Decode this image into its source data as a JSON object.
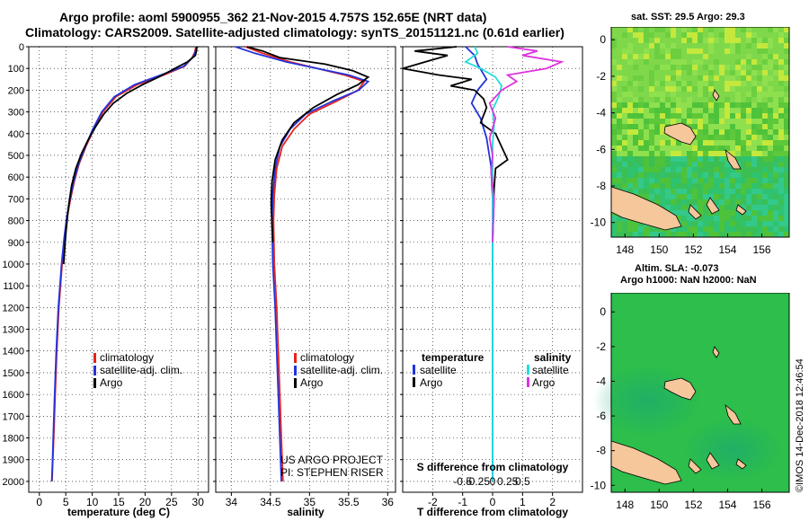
{
  "header": {
    "title_line1": "Argo profile: aoml 5900955_362 21-Nov-2015 4.757S 152.65E (NRT data)",
    "title_line2": "Climatology: CARS2009. Satellite-adjusted climatology: synTS_20151121.nc (0.61d earlier)"
  },
  "colors": {
    "climatology": "#e8221c",
    "satellite": "#2233dd",
    "argo": "#000000",
    "salinity_satellite": "#22dddd",
    "salinity_argo": "#dd33dd",
    "land": "#f5c79b"
  },
  "chart_data": [
    {
      "id": "temperature",
      "type": "line",
      "xlabel": "temperature (deg C)",
      "xlim": [
        -2,
        32
      ],
      "xticks": [
        0,
        5,
        10,
        15,
        20,
        25,
        30
      ],
      "xticklabels": [
        "0",
        "5",
        "10",
        "15",
        "20",
        "25",
        "30"
      ],
      "ylim": [
        0,
        2050
      ],
      "yticks": [
        0,
        100,
        200,
        300,
        400,
        500,
        600,
        700,
        800,
        900,
        1000,
        1100,
        1200,
        1300,
        1400,
        1500,
        1600,
        1700,
        1800,
        1900,
        2000
      ],
      "yticklabels": [
        "0",
        "100",
        "200",
        "300",
        "400",
        "500",
        "600",
        "700",
        "800",
        "900",
        "1000",
        "1100",
        "1200",
        "1300",
        "1400",
        "1500",
        "1600",
        "1700",
        "1800",
        "1900",
        "2000"
      ],
      "legend": [
        "climatology",
        "satellite-adj. clim.",
        "Argo"
      ],
      "series": [
        {
          "name": "climatology",
          "color": "#e8221c",
          "x": [
            29.6,
            29.4,
            28.9,
            27.5,
            23.5,
            18.5,
            14.5,
            12.0,
            10.3,
            8.8,
            7.5,
            6.6,
            5.9,
            5.3,
            4.8,
            4.3,
            3.7,
            3.3,
            3.0,
            2.8,
            2.55,
            2.4
          ],
          "y": [
            0,
            25,
            50,
            90,
            130,
            175,
            230,
            300,
            380,
            460,
            540,
            620,
            700,
            780,
            880,
            1000,
            1200,
            1400,
            1600,
            1750,
            1900,
            2000
          ]
        },
        {
          "name": "satellite-adj. clim.",
          "color": "#2233dd",
          "x": [
            29.7,
            29.5,
            29.0,
            27.3,
            23.0,
            18.0,
            14.2,
            11.8,
            10.1,
            8.7,
            7.4,
            6.5,
            5.8,
            5.2,
            4.7,
            4.2,
            3.6,
            3.2,
            2.9,
            2.7,
            2.5,
            2.35
          ],
          "y": [
            0,
            25,
            50,
            90,
            130,
            175,
            230,
            300,
            380,
            460,
            540,
            620,
            700,
            780,
            880,
            1000,
            1200,
            1400,
            1600,
            1750,
            1900,
            2000
          ]
        },
        {
          "name": "Argo",
          "color": "#000000",
          "x": [
            29.8,
            29.7,
            29.5,
            28.0,
            26.0,
            24.5,
            22.5,
            19.5,
            16.5,
            14.0,
            12.2,
            10.6,
            9.2,
            8.0,
            6.9,
            6.1,
            5.5,
            5.0,
            4.6
          ],
          "y": [
            0,
            20,
            40,
            70,
            95,
            115,
            140,
            175,
            215,
            260,
            310,
            370,
            430,
            490,
            560,
            640,
            740,
            860,
            1000
          ]
        }
      ]
    },
    {
      "id": "salinity",
      "type": "line",
      "xlabel": "salinity",
      "xlim": [
        33.8,
        36.1
      ],
      "xticks": [
        34,
        34.5,
        35,
        35.5,
        36
      ],
      "xticklabels": [
        "34",
        "34.5",
        "35",
        "35.5",
        "36"
      ],
      "ylim": [
        0,
        2050
      ],
      "legend": [
        "climatology",
        "satellite-adj. clim.",
        "Argo"
      ],
      "credit_line1": "US ARGO PROJECT",
      "credit_line2": "PI: STEPHEN RISER",
      "series": [
        {
          "name": "climatology",
          "color": "#e8221c",
          "x": [
            34.18,
            34.4,
            34.75,
            35.1,
            35.45,
            35.7,
            35.62,
            35.35,
            35.0,
            34.8,
            34.65,
            34.58,
            34.55,
            34.54,
            34.55,
            34.58,
            34.6,
            34.62,
            34.64,
            34.66
          ],
          "y": [
            0,
            30,
            70,
            100,
            130,
            160,
            200,
            250,
            310,
            380,
            460,
            560,
            680,
            800,
            1000,
            1200,
            1400,
            1600,
            1800,
            2000
          ]
        },
        {
          "name": "satellite-adj. clim.",
          "color": "#2233dd",
          "x": [
            34.05,
            34.3,
            34.7,
            35.1,
            35.5,
            35.75,
            35.63,
            35.3,
            34.95,
            34.75,
            34.62,
            34.56,
            34.53,
            34.52,
            34.53,
            34.56,
            34.58,
            34.6,
            34.62,
            34.64
          ],
          "y": [
            0,
            30,
            70,
            100,
            130,
            160,
            200,
            250,
            310,
            380,
            460,
            560,
            680,
            800,
            1000,
            1200,
            1400,
            1600,
            1800,
            2000
          ]
        },
        {
          "name": "Argo",
          "color": "#000000",
          "x": [
            34.2,
            34.4,
            34.62,
            35.2,
            35.55,
            35.75,
            35.62,
            35.35,
            35.05,
            34.8,
            34.65,
            34.56,
            34.52,
            34.51,
            34.52,
            34.53
          ],
          "y": [
            0,
            20,
            50,
            80,
            110,
            140,
            175,
            220,
            280,
            350,
            430,
            520,
            620,
            720,
            820,
            900
          ]
        }
      ]
    },
    {
      "id": "difference",
      "type": "line",
      "xlabel": "T difference from climatology",
      "xlabel2": "S difference from climatology",
      "xlim": [
        -3,
        3
      ],
      "xticks": [
        -2,
        -1,
        0,
        1,
        2
      ],
      "xticklabels": [
        "-2",
        "-1",
        "0",
        "1",
        "2"
      ],
      "xticks2": [
        -1,
        -0.5,
        0,
        0.5,
        1
      ],
      "xticklabels2": [
        "-0.5",
        "-0.25",
        "0",
        "0.25",
        "0.5"
      ],
      "ylim": [
        0,
        2050
      ],
      "legend_left_title": "temperature",
      "legend_right_title": "salinity",
      "legend_left": [
        "satellite",
        "Argo"
      ],
      "legend_right": [
        "satellite",
        "Argo"
      ],
      "series": [
        {
          "name": "T satellite",
          "color": "#2233dd",
          "x": [
            -0.9,
            -0.6,
            -0.5,
            -0.2,
            -0.5,
            -0.7,
            -0.4,
            -0.2,
            -0.05,
            0,
            0,
            0
          ],
          "y": [
            0,
            40,
            80,
            150,
            200,
            260,
            330,
            420,
            550,
            700,
            900,
            2000
          ]
        },
        {
          "name": "T Argo",
          "color": "#000000",
          "x": [
            -1.2,
            -2.6,
            -1.5,
            -2.0,
            -3.0,
            -1.8,
            -0.7,
            -1.4,
            -0.6,
            -0.3,
            -0.2,
            -0.4,
            0.1,
            0.5,
            0.1,
            0.05,
            0
          ],
          "y": [
            0,
            20,
            40,
            60,
            100,
            130,
            150,
            180,
            200,
            240,
            280,
            350,
            400,
            520,
            560,
            650,
            900
          ]
        },
        {
          "name": "S satellite",
          "color": "#22dddd",
          "x": [
            -0.6,
            -0.5,
            -0.9,
            -0.4,
            0.1,
            0.3,
            0.2,
            0.0,
            0.05,
            0,
            0,
            0
          ],
          "y": [
            0,
            30,
            70,
            100,
            140,
            180,
            230,
            290,
            360,
            450,
            700,
            2000
          ]
        },
        {
          "name": "S Argo",
          "color": "#dd33dd",
          "x": [
            0.5,
            1.5,
            1.0,
            2.3,
            1.8,
            0.5,
            0.8,
            0.3,
            -0.1,
            0.1,
            -0.1,
            0.0,
            -0.05,
            0.05,
            0.0
          ],
          "y": [
            0,
            20,
            40,
            70,
            100,
            130,
            160,
            200,
            260,
            330,
            420,
            500,
            580,
            700,
            900
          ]
        }
      ]
    }
  ],
  "maps": {
    "sst_title": "sat. SST: 29.5 Argo: 29.3",
    "sla_title_line1": "Altim. SLA: -0.073",
    "sla_title_line2": "Argo h1000: NaN h2000: NaN",
    "lat_ticks": [
      "0",
      "-2",
      "-4",
      "-6",
      "-8",
      "-10"
    ],
    "lon_ticks": [
      "148",
      "150",
      "152",
      "154",
      "156"
    ]
  },
  "footer": {
    "stamp": "©IMOS 14-Dec-2018 12:46:54"
  }
}
